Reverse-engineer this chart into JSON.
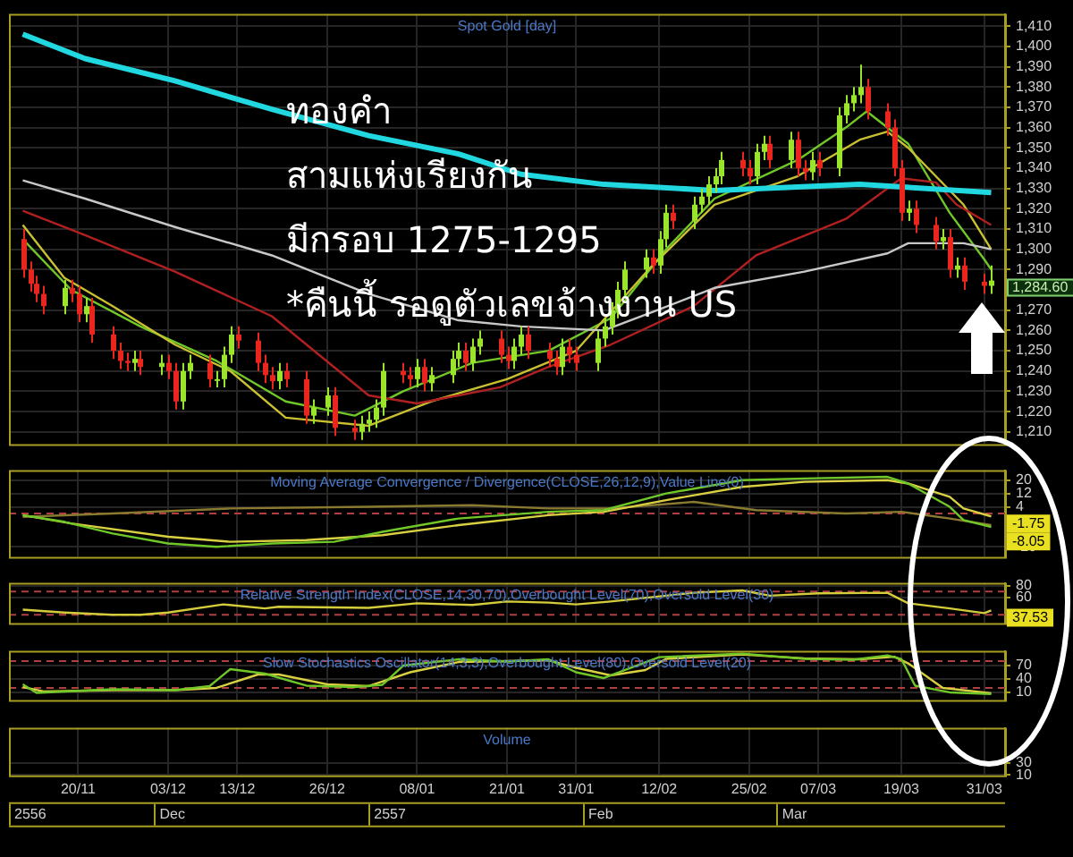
{
  "chart_data": [
    {
      "type": "candlestick",
      "title": "Spot Gold [day]",
      "tick_labels": "y",
      "grid": true,
      "annotations": [
        "ทองคำ",
        "สามแห่งเรียงกัน",
        "มีกรอบ 1275-1295",
        "*คืนนี้ รอดูตัวเลขจ้างงาน US",
        "1,284.60"
      ],
      "xlim": [
        "2556-11-10",
        "2557-04-03"
      ],
      "xticks": [
        {
          "value": "2556-11-20",
          "label": null
        },
        {
          "value": "2556-12-03",
          "label": null
        },
        {
          "value": "2556-12-13",
          "label": null
        },
        {
          "value": "2556-12-26",
          "label": null
        },
        {
          "value": "2557-01-08",
          "label": null
        },
        {
          "value": "2557-01-21",
          "label": null
        },
        {
          "value": "2557-01-31",
          "label": null
        },
        {
          "value": "2557-02-12",
          "label": null
        },
        {
          "value": "2557-02-25",
          "label": null
        },
        {
          "value": "2557-03-07",
          "label": null
        },
        {
          "value": "2557-03-19",
          "label": null
        },
        {
          "value": "2557-03-31",
          "label": null
        }
      ],
      "ylim": [
        1204,
        1416
      ],
      "yticks": [
        {
          "value": 1210,
          "label": "1,210"
        },
        {
          "value": 1220,
          "label": "1,220"
        },
        {
          "value": 1230,
          "label": "1,230"
        },
        {
          "value": 1240,
          "label": "1,240"
        },
        {
          "value": 1250,
          "label": "1,250"
        },
        {
          "value": 1260,
          "label": "1,260"
        },
        {
          "value": 1270,
          "label": "1,270"
        },
        {
          "value": 1290,
          "label": "1,290"
        },
        {
          "value": 1300,
          "label": "1,300"
        },
        {
          "value": 1310,
          "label": "1,310"
        },
        {
          "value": 1320,
          "label": "1,320"
        },
        {
          "value": 1330,
          "label": "1,330"
        },
        {
          "value": 1340,
          "label": "1,340"
        },
        {
          "value": 1350,
          "label": "1,350"
        },
        {
          "value": 1360,
          "label": "1,360"
        },
        {
          "value": 1370,
          "label": "1,370"
        },
        {
          "value": 1380,
          "label": "1,380"
        },
        {
          "value": 1390,
          "label": "1,390"
        },
        {
          "value": 1400,
          "label": "1,400"
        },
        {
          "value": 1410,
          "label": "1,410"
        }
      ],
      "x": [
        "2556-11-12",
        "2556-11-13",
        "2556-11-14",
        "2556-11-15",
        "2556-11-18",
        "2556-11-19",
        "2556-11-20",
        "2556-11-21",
        "2556-11-22",
        "2556-11-25",
        "2556-11-26",
        "2556-11-27",
        "2556-11-28",
        "2556-11-29",
        "2556-12-02",
        "2556-12-03",
        "2556-12-04",
        "2556-12-05",
        "2556-12-06",
        "2556-12-09",
        "2556-12-10",
        "2556-12-11",
        "2556-12-12",
        "2556-12-13",
        "2556-12-16",
        "2556-12-17",
        "2556-12-18",
        "2556-12-19",
        "2556-12-20",
        "2556-12-23",
        "2556-12-24",
        "2556-12-26",
        "2556-12-27",
        "2556-12-30",
        "2556-12-31",
        "2557-01-01",
        "2557-01-02",
        "2557-01-03",
        "2557-01-06",
        "2557-01-07",
        "2557-01-08",
        "2557-01-09",
        "2557-01-10",
        "2557-01-13",
        "2557-01-14",
        "2557-01-15",
        "2557-01-16",
        "2557-01-17",
        "2557-01-20",
        "2557-01-21",
        "2557-01-22",
        "2557-01-23",
        "2557-01-24",
        "2557-01-27",
        "2557-01-28",
        "2557-01-29",
        "2557-01-30",
        "2557-01-31",
        "2557-02-03",
        "2557-02-04",
        "2557-02-05",
        "2557-02-06",
        "2557-02-07",
        "2557-02-10",
        "2557-02-11",
        "2557-02-12",
        "2557-02-13",
        "2557-02-14",
        "2557-02-17",
        "2557-02-18",
        "2557-02-19",
        "2557-02-20",
        "2557-02-21",
        "2557-02-24",
        "2557-02-25",
        "2557-02-26",
        "2557-02-27",
        "2557-02-28",
        "2557-03-03",
        "2557-03-04",
        "2557-03-05",
        "2557-03-06",
        "2557-03-07",
        "2557-03-10",
        "2557-03-11",
        "2557-03-12",
        "2557-03-13",
        "2557-03-14",
        "2557-03-17",
        "2557-03-18",
        "2557-03-19",
        "2557-03-20",
        "2557-03-21",
        "2557-03-24",
        "2557-03-25",
        "2557-03-26",
        "2557-03-27",
        "2557-03-28",
        "2557-03-31",
        "2557-04-01"
      ],
      "ohlc": [
        [
          1305,
          1310,
          1286,
          1290
        ],
        [
          1290,
          1294,
          1279,
          1283
        ],
        [
          1283,
          1287,
          1274,
          1278
        ],
        [
          1278,
          1282,
          1268,
          1272
        ],
        [
          1272,
          1285,
          1268,
          1281
        ],
        [
          1281,
          1285,
          1274,
          1278
        ],
        [
          1278,
          1282,
          1264,
          1268
        ],
        [
          1268,
          1276,
          1264,
          1272
        ],
        [
          1272,
          1276,
          1254,
          1258
        ],
        [
          1258,
          1262,
          1246,
          1250
        ],
        [
          1250,
          1254,
          1241,
          1245
        ],
        [
          1245,
          1249,
          1240,
          1244
        ],
        [
          1244,
          1250,
          1240,
          1246
        ],
        [
          1246,
          1250,
          1238,
          1242
        ],
        [
          1242,
          1248,
          1238,
          1244
        ],
        [
          1244,
          1248,
          1236,
          1240
        ],
        [
          1240,
          1244,
          1221,
          1225
        ],
        [
          1225,
          1244,
          1221,
          1240
        ],
        [
          1240,
          1248,
          1236,
          1244
        ],
        [
          1244,
          1248,
          1232,
          1236
        ],
        [
          1236,
          1240,
          1232,
          1236
        ],
        [
          1236,
          1252,
          1232,
          1248
        ],
        [
          1248,
          1262,
          1244,
          1258
        ],
        [
          1258,
          1262,
          1251,
          1255
        ],
        [
          1255,
          1259,
          1240,
          1244
        ],
        [
          1244,
          1248,
          1234,
          1238
        ],
        [
          1238,
          1242,
          1231,
          1235
        ],
        [
          1235,
          1244,
          1231,
          1240
        ],
        [
          1240,
          1244,
          1232,
          1236
        ],
        [
          1236,
          1240,
          1214,
          1218
        ],
        [
          1218,
          1226,
          1214,
          1222
        ],
        [
          1222,
          1232,
          1218,
          1228
        ],
        [
          1228,
          1232,
          1208,
          1212
        ],
        [
          1212,
          1216,
          1206,
          1210
        ],
        [
          1210,
          1218,
          1206,
          1214
        ],
        [
          1214,
          1220,
          1210,
          1216
        ],
        [
          1216,
          1226,
          1212,
          1222
        ],
        [
          1222,
          1244,
          1218,
          1240
        ],
        [
          1240,
          1244,
          1234,
          1238
        ],
        [
          1238,
          1242,
          1232,
          1236
        ],
        [
          1236,
          1246,
          1232,
          1242
        ],
        [
          1242,
          1246,
          1230,
          1234
        ],
        [
          1234,
          1242,
          1230,
          1238
        ],
        [
          1238,
          1250,
          1234,
          1246
        ],
        [
          1246,
          1254,
          1242,
          1250
        ],
        [
          1250,
          1254,
          1240,
          1244
        ],
        [
          1244,
          1256,
          1240,
          1252
        ],
        [
          1252,
          1260,
          1248,
          1256
        ],
        [
          1256,
          1260,
          1244,
          1248
        ],
        [
          1248,
          1252,
          1241,
          1245
        ],
        [
          1245,
          1256,
          1241,
          1252
        ],
        [
          1252,
          1262,
          1248,
          1258
        ],
        [
          1258,
          1262,
          1246,
          1250
        ],
        [
          1250,
          1254,
          1242,
          1246
        ],
        [
          1246,
          1250,
          1238,
          1242
        ],
        [
          1242,
          1256,
          1238,
          1252
        ],
        [
          1252,
          1256,
          1244,
          1248
        ],
        [
          1248,
          1252,
          1240,
          1244
        ],
        [
          1244,
          1260,
          1240,
          1256
        ],
        [
          1256,
          1266,
          1252,
          1262
        ],
        [
          1262,
          1274,
          1258,
          1270
        ],
        [
          1270,
          1284,
          1266,
          1280
        ],
        [
          1280,
          1294,
          1276,
          1290
        ],
        [
          1290,
          1300,
          1286,
          1296
        ],
        [
          1296,
          1300,
          1288,
          1292
        ],
        [
          1292,
          1309,
          1288,
          1305
        ],
        [
          1305,
          1322,
          1301,
          1318
        ],
        [
          1318,
          1322,
          1310,
          1314
        ],
        [
          1314,
          1326,
          1310,
          1322
        ],
        [
          1322,
          1330,
          1318,
          1326
        ],
        [
          1326,
          1336,
          1322,
          1332
        ],
        [
          1332,
          1340,
          1328,
          1336
        ],
        [
          1336,
          1348,
          1332,
          1344
        ],
        [
          1344,
          1348,
          1336,
          1340
        ],
        [
          1340,
          1344,
          1332,
          1336
        ],
        [
          1336,
          1352,
          1332,
          1348
        ],
        [
          1348,
          1356,
          1344,
          1352
        ],
        [
          1352,
          1356,
          1340,
          1344
        ],
        [
          1344,
          1358,
          1340,
          1354
        ],
        [
          1354,
          1358,
          1336,
          1340
        ],
        [
          1340,
          1344,
          1334,
          1338
        ],
        [
          1338,
          1348,
          1334,
          1344
        ],
        [
          1344,
          1348,
          1336,
          1340
        ],
        [
          1340,
          1370,
          1336,
          1366
        ],
        [
          1366,
          1376,
          1362,
          1372
        ],
        [
          1372,
          1380,
          1368,
          1376
        ],
        [
          1376,
          1391,
          1372,
          1380
        ],
        [
          1380,
          1384,
          1364,
          1368
        ],
        [
          1368,
          1372,
          1356,
          1360
        ],
        [
          1360,
          1364,
          1336,
          1340
        ],
        [
          1340,
          1344,
          1314,
          1318
        ],
        [
          1318,
          1324,
          1314,
          1320
        ],
        [
          1320,
          1324,
          1308,
          1312
        ],
        [
          1312,
          1316,
          1300,
          1304
        ],
        [
          1304,
          1310,
          1300,
          1306
        ],
        [
          1306,
          1310,
          1286,
          1290
        ],
        [
          1290,
          1296,
          1286,
          1292
        ],
        [
          1292,
          1296,
          1280,
          1284
        ],
        [
          1284,
          1288,
          1278,
          1282
        ],
        [
          1282,
          1292,
          1278,
          1284.6
        ]
      ],
      "series": [
        {
          "type": "line",
          "color": "#22d8e0",
          "x": [
            "2556-11-12",
            "2556-11-21",
            "2556-12-04",
            "2556-12-18",
            "2557-01-01",
            "2557-01-14",
            "2557-01-23",
            "2557-02-04",
            "2557-02-20",
            "2557-03-13",
            "2557-04-01"
          ],
          "values": [
            1406,
            1394,
            1383,
            1369,
            1356,
            1347,
            1337,
            1332,
            1329,
            1332,
            1328
          ]
        },
        {
          "type": "line",
          "color": "#c8c8c8",
          "x": [
            "2556-11-12",
            "2556-11-21",
            "2556-12-04",
            "2556-12-18",
            "2557-01-01",
            "2557-01-14",
            "2557-01-23",
            "2557-02-04",
            "2557-02-11",
            "2557-02-20",
            "2557-03-05",
            "2557-03-17",
            "2557-03-20",
            "2557-03-28",
            "2557-04-01"
          ],
          "values": [
            1334,
            1325,
            1311,
            1297,
            1278,
            1265,
            1262,
            1260,
            1269,
            1281,
            1289,
            1298,
            1303,
            1303,
            1300
          ]
        },
        {
          "type": "line",
          "color": "#b02020",
          "x": [
            "2556-11-12",
            "2556-11-21",
            "2556-12-04",
            "2556-12-18",
            "2557-01-01",
            "2557-01-08",
            "2557-01-20",
            "2557-01-27",
            "2557-02-05",
            "2557-02-17",
            "2557-02-26",
            "2557-03-11",
            "2557-03-19",
            "2557-03-24",
            "2557-03-27",
            "2557-04-01"
          ],
          "values": [
            1319,
            1307,
            1289,
            1267,
            1228,
            1224,
            1232,
            1242,
            1253,
            1272,
            1297,
            1315,
            1335,
            1333,
            1322,
            1312
          ]
        },
        {
          "type": "line",
          "color": "#c8c030",
          "x": [
            "2556-11-12",
            "2556-11-18",
            "2556-11-25",
            "2556-12-04",
            "2556-12-12",
            "2556-12-20",
            "2557-01-01",
            "2557-01-10",
            "2557-01-21",
            "2557-01-31",
            "2557-02-11",
            "2557-02-20",
            "2557-03-04",
            "2557-03-13",
            "2557-03-17",
            "2557-03-20",
            "2557-03-28",
            "2557-04-01"
          ],
          "values": [
            1312,
            1286,
            1272,
            1253,
            1240,
            1217,
            1213,
            1225,
            1236,
            1250,
            1292,
            1322,
            1336,
            1354,
            1358,
            1350,
            1322,
            1300
          ]
        },
        {
          "type": "line",
          "color": "#70c828",
          "x": [
            "2556-11-12",
            "2556-11-19",
            "2556-11-29",
            "2556-12-10",
            "2556-12-20",
            "2556-12-30",
            "2557-01-06",
            "2557-01-16",
            "2557-01-27",
            "2557-02-05",
            "2557-02-13",
            "2557-02-20",
            "2557-03-04",
            "2557-03-11",
            "2557-03-14",
            "2557-03-20",
            "2557-03-26",
            "2557-03-31",
            "2557-04-01"
          ],
          "values": [
            1305,
            1280,
            1262,
            1245,
            1225,
            1218,
            1230,
            1244,
            1250,
            1266,
            1300,
            1325,
            1344,
            1360,
            1368,
            1352,
            1318,
            1295,
            1290
          ]
        }
      ]
    },
    {
      "type": "line",
      "title": "Moving Average Convergence / Divergence(CLOSE,26,12,9),Value Line(0)",
      "tick_labels": "y",
      "grid": true,
      "annotations": [
        "-1.75",
        "-8.05"
      ],
      "xlim": [
        "2556-11-10",
        "2557-04-03"
      ],
      "xticks": [
        {
          "value": "2556-11-20",
          "label": null
        },
        {
          "value": "2556-12-03",
          "label": null
        },
        {
          "value": "2556-12-13",
          "label": null
        },
        {
          "value": "2556-12-26",
          "label": null
        },
        {
          "value": "2557-01-08",
          "label": null
        },
        {
          "value": "2557-01-21",
          "label": null
        },
        {
          "value": "2557-01-31",
          "label": null
        },
        {
          "value": "2557-02-12",
          "label": null
        },
        {
          "value": "2557-02-25",
          "label": null
        },
        {
          "value": "2557-03-07",
          "label": null
        },
        {
          "value": "2557-03-19",
          "label": null
        },
        {
          "value": "2557-03-31",
          "label": null
        }
      ],
      "ylim": [
        -26,
        26
      ],
      "yticks": [
        -20,
        4,
        12,
        20
      ],
      "ref_lines": [
        {
          "axis": "y",
          "value": 0,
          "color": "#b04040",
          "line_style": "dashed"
        }
      ],
      "series": [
        {
          "color": "#70c828",
          "x": [
            "2556-11-12",
            "2556-11-18",
            "2556-11-25",
            "2556-12-03",
            "2556-12-10",
            "2556-12-18",
            "2556-12-27",
            "2557-01-03",
            "2557-01-14",
            "2557-01-27",
            "2557-02-04",
            "2557-02-13",
            "2557-02-24",
            "2557-03-05",
            "2557-03-17",
            "2557-03-20",
            "2557-03-26",
            "2557-03-28",
            "2557-04-01"
          ],
          "values": [
            -1,
            -5,
            -12,
            -18,
            -20,
            -18,
            -17,
            -11,
            -3,
            1,
            2,
            12,
            20,
            21,
            22,
            18,
            4,
            -4,
            -8.05
          ]
        },
        {
          "color": "#d8d040",
          "x": [
            "2556-11-12",
            "2556-11-19",
            "2556-12-03",
            "2556-12-12",
            "2556-12-23",
            "2557-01-03",
            "2557-01-14",
            "2557-01-27",
            "2557-02-04",
            "2557-02-13",
            "2557-02-24",
            "2557-03-05",
            "2557-03-17",
            "2557-03-20",
            "2557-03-26",
            "2557-03-28",
            "2557-04-01"
          ],
          "values": [
            -1,
            -6,
            -14,
            -17,
            -16,
            -13,
            -7,
            -1,
            1,
            8,
            16,
            19,
            20,
            18,
            10,
            3,
            -1.75
          ]
        },
        {
          "color": "#8a7a30",
          "x": [
            "2556-11-12",
            "2556-11-25",
            "2556-12-12",
            "2557-01-01",
            "2557-01-16",
            "2557-01-27",
            "2557-02-05",
            "2557-02-17",
            "2557-02-26",
            "2557-03-11",
            "2557-03-19",
            "2557-03-26",
            "2557-04-01"
          ],
          "values": [
            -2,
            0,
            3,
            4,
            5,
            3,
            3,
            7,
            2,
            0,
            1,
            -3,
            -7
          ]
        }
      ]
    },
    {
      "type": "line",
      "title": "Relative Strength Index(CLOSE,14,30,70),Overbought Level(70),Oversold Level(30)",
      "tick_labels": "y",
      "grid": true,
      "annotations": [
        "37.53"
      ],
      "xlim": [
        "2556-11-10",
        "2557-04-03"
      ],
      "xticks": [
        {
          "value": "2556-11-20",
          "label": null
        },
        {
          "value": "2556-12-03",
          "label": null
        },
        {
          "value": "2556-12-13",
          "label": null
        },
        {
          "value": "2556-12-26",
          "label": null
        },
        {
          "value": "2557-01-08",
          "label": null
        },
        {
          "value": "2557-01-21",
          "label": null
        },
        {
          "value": "2557-01-31",
          "label": null
        },
        {
          "value": "2557-02-12",
          "label": null
        },
        {
          "value": "2557-02-25",
          "label": null
        },
        {
          "value": "2557-03-07",
          "label": null
        },
        {
          "value": "2557-03-19",
          "label": null
        },
        {
          "value": "2557-03-31",
          "label": null
        }
      ],
      "ylim": [
        16,
        85
      ],
      "yticks": [
        60,
        80
      ],
      "ref_lines": [
        {
          "axis": "y",
          "value": 70,
          "color": "#b04040",
          "line_style": "dashed"
        },
        {
          "axis": "y",
          "value": 30,
          "color": "#b04040",
          "line_style": "dashed"
        }
      ],
      "series": [
        {
          "color": "#d4cc3a",
          "x": [
            "2556-11-12",
            "2556-11-18",
            "2556-11-25",
            "2556-11-29",
            "2556-12-03",
            "2556-12-11",
            "2556-12-17",
            "2556-12-19",
            "2557-01-01",
            "2557-01-08",
            "2557-01-16",
            "2557-01-21",
            "2557-01-27",
            "2557-01-31",
            "2557-02-05",
            "2557-02-17",
            "2557-02-24",
            "2557-02-28",
            "2557-03-07",
            "2557-03-17",
            "2557-03-20",
            "2557-03-26",
            "2557-03-31",
            "2557-04-01"
          ],
          "values": [
            39,
            34,
            30,
            30,
            34,
            48,
            41,
            44,
            42,
            50,
            47,
            53,
            51,
            48,
            53,
            68,
            72,
            63,
            67,
            68,
            50,
            41,
            33,
            37.53
          ]
        }
      ]
    },
    {
      "type": "line",
      "title": "Slow Stochastics Oscillator(14,3,3),Overbought Level(80),Oversold Level(20)",
      "tick_labels": "y",
      "grid": true,
      "xlim": [
        "2556-11-10",
        "2557-04-03"
      ],
      "xticks": [
        {
          "value": "2556-11-20",
          "label": null
        },
        {
          "value": "2556-12-03",
          "label": null
        },
        {
          "value": "2556-12-13",
          "label": null
        },
        {
          "value": "2556-12-26",
          "label": null
        },
        {
          "value": "2557-01-08",
          "label": null
        },
        {
          "value": "2557-01-21",
          "label": null
        },
        {
          "value": "2557-01-31",
          "label": null
        },
        {
          "value": "2557-02-12",
          "label": null
        },
        {
          "value": "2557-02-25",
          "label": null
        },
        {
          "value": "2557-03-07",
          "label": null
        },
        {
          "value": "2557-03-19",
          "label": null
        },
        {
          "value": "2557-03-31",
          "label": null
        }
      ],
      "ylim": [
        -7,
        103
      ],
      "yticks": [
        10,
        40,
        70
      ],
      "ref_lines": [
        {
          "axis": "y",
          "value": 80,
          "color": "#b04040",
          "line_style": "dashed"
        },
        {
          "axis": "y",
          "value": 20,
          "color": "#b04040",
          "line_style": "dashed"
        }
      ],
      "series": [
        {
          "color": "#70c828",
          "x": [
            "2556-11-12",
            "2556-11-14",
            "2556-11-25",
            "2556-12-04",
            "2556-12-09",
            "2556-12-12",
            "2556-12-17",
            "2556-12-23",
            "2556-12-30",
            "2557-01-03",
            "2557-01-06",
            "2557-01-14",
            "2557-01-21",
            "2557-01-27",
            "2557-01-31",
            "2557-02-04",
            "2557-02-07",
            "2557-02-12",
            "2557-02-24",
            "2557-03-05",
            "2557-03-12",
            "2557-03-17",
            "2557-03-19",
            "2557-03-21",
            "2557-03-26",
            "2557-04-01"
          ],
          "values": [
            28,
            9,
            17,
            15,
            24,
            62,
            52,
            25,
            22,
            27,
            70,
            84,
            79,
            84,
            55,
            42,
            60,
            89,
            97,
            85,
            83,
            93,
            85,
            25,
            10,
            6
          ]
        },
        {
          "color": "#d8d040",
          "x": [
            "2556-11-12",
            "2556-11-15",
            "2556-11-25",
            "2556-12-04",
            "2556-12-10",
            "2556-12-16",
            "2556-12-19",
            "2556-12-26",
            "2557-01-01",
            "2557-01-07",
            "2557-01-14",
            "2557-01-21",
            "2557-01-27",
            "2557-01-31",
            "2557-02-05",
            "2557-02-10",
            "2557-02-13",
            "2557-02-24",
            "2557-03-05",
            "2557-03-13",
            "2557-03-18",
            "2557-03-20",
            "2557-03-25",
            "2557-04-01"
          ],
          "values": [
            22,
            12,
            15,
            15,
            20,
            50,
            50,
            28,
            24,
            55,
            78,
            80,
            82,
            65,
            48,
            60,
            85,
            95,
            86,
            84,
            90,
            75,
            20,
            8
          ]
        }
      ]
    },
    {
      "type": "bar",
      "title": "Volume",
      "grid": true,
      "annotations": [
        "2556",
        "Dec",
        "2557",
        "Feb",
        "Mar"
      ],
      "xlim": [
        "2556-11-10",
        "2557-04-03"
      ],
      "xticks": [
        {
          "value": "2556-11-20",
          "label": "20/11"
        },
        {
          "value": "2556-12-03",
          "label": "03/12"
        },
        {
          "value": "2556-12-13",
          "label": "13/12"
        },
        {
          "value": "2556-12-26",
          "label": "26/12"
        },
        {
          "value": "2557-01-08",
          "label": "08/01"
        },
        {
          "value": "2557-01-21",
          "label": "21/01"
        },
        {
          "value": "2557-01-31",
          "label": "31/01"
        },
        {
          "value": "2557-02-12",
          "label": "12/02"
        },
        {
          "value": "2557-02-25",
          "label": "25/02"
        },
        {
          "value": "2557-03-07",
          "label": "07/03"
        },
        {
          "value": "2557-03-19",
          "label": "19/03"
        },
        {
          "value": "2557-03-31",
          "label": "31/03"
        }
      ],
      "ylim": [
        9,
        89
      ],
      "yticks": [
        10,
        30
      ]
    }
  ]
}
